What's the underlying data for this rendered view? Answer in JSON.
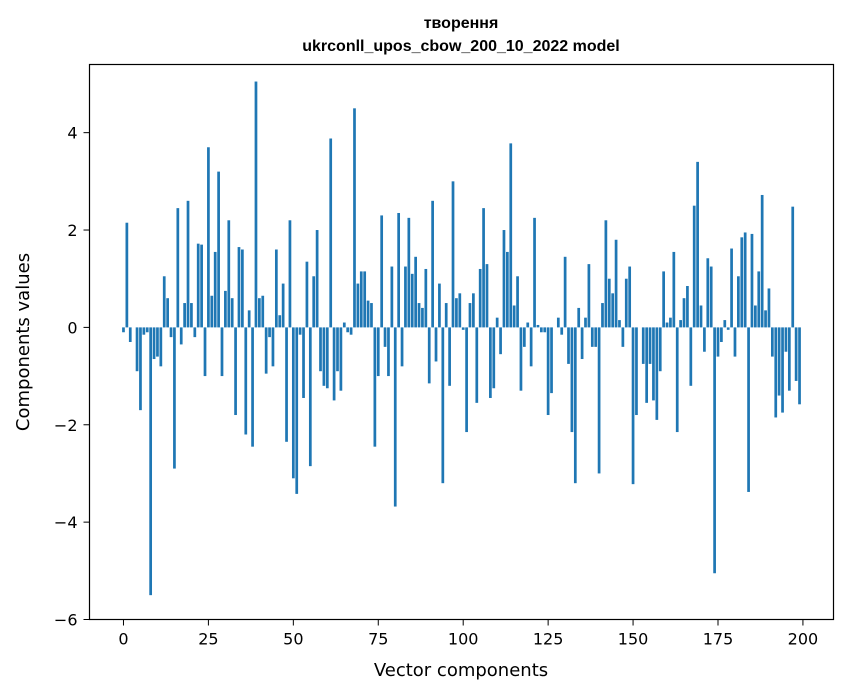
{
  "chart_data": {
    "type": "bar",
    "title": "творення",
    "subtitle": "ukrconll_upos_cbow_200_10_2022 model",
    "xlabel": "Vector components",
    "ylabel": "Components values",
    "xlim": [
      -10,
      209
    ],
    "ylim": [
      -6,
      5.4
    ],
    "x_ticks": [
      0,
      25,
      50,
      75,
      100,
      125,
      150,
      175,
      200
    ],
    "y_ticks": [
      -6,
      -4,
      -2,
      0,
      2,
      4
    ],
    "y_tick_labels": [
      "−6",
      "−4",
      "−2",
      "0",
      "2",
      "4"
    ],
    "grid": false,
    "bar_color": "#1f77b4",
    "x": [
      0,
      1,
      2,
      3,
      4,
      5,
      6,
      7,
      8,
      9,
      10,
      11,
      12,
      13,
      14,
      15,
      16,
      17,
      18,
      19,
      20,
      21,
      22,
      23,
      24,
      25,
      26,
      27,
      28,
      29,
      30,
      31,
      32,
      33,
      34,
      35,
      36,
      37,
      38,
      39,
      40,
      41,
      42,
      43,
      44,
      45,
      46,
      47,
      48,
      49,
      50,
      51,
      52,
      53,
      54,
      55,
      56,
      57,
      58,
      59,
      60,
      61,
      62,
      63,
      64,
      65,
      66,
      67,
      68,
      69,
      70,
      71,
      72,
      73,
      74,
      75,
      76,
      77,
      78,
      79,
      80,
      81,
      82,
      83,
      84,
      85,
      86,
      87,
      88,
      89,
      90,
      91,
      92,
      93,
      94,
      95,
      96,
      97,
      98,
      99,
      100,
      101,
      102,
      103,
      104,
      105,
      106,
      107,
      108,
      109,
      110,
      111,
      112,
      113,
      114,
      115,
      116,
      117,
      118,
      119,
      120,
      121,
      122,
      123,
      124,
      125,
      126,
      127,
      128,
      129,
      130,
      131,
      132,
      133,
      134,
      135,
      136,
      137,
      138,
      139,
      140,
      141,
      142,
      143,
      144,
      145,
      146,
      147,
      148,
      149,
      150,
      151,
      152,
      153,
      154,
      155,
      156,
      157,
      158,
      159,
      160,
      161,
      162,
      163,
      164,
      165,
      166,
      167,
      168,
      169,
      170,
      171,
      172,
      173,
      174,
      175,
      176,
      177,
      178,
      179,
      180,
      181,
      182,
      183,
      184,
      185,
      186,
      187,
      188,
      189,
      190,
      191,
      192,
      193,
      194,
      195,
      196,
      197,
      198,
      199
    ],
    "values": [
      -0.1,
      2.15,
      -0.3,
      0.0,
      -0.9,
      -1.7,
      -0.15,
      -0.1,
      -5.5,
      -0.65,
      -0.6,
      -0.8,
      1.05,
      0.6,
      -0.2,
      -2.9,
      2.45,
      -0.35,
      0.5,
      2.6,
      0.5,
      -0.2,
      1.72,
      1.7,
      -1.0,
      3.7,
      0.65,
      1.55,
      3.2,
      -1.0,
      0.75,
      2.2,
      0.6,
      -1.8,
      1.65,
      1.6,
      -2.2,
      0.35,
      -2.45,
      5.05,
      0.6,
      0.65,
      -0.95,
      -0.2,
      -0.8,
      1.6,
      0.25,
      0.9,
      -2.35,
      2.2,
      -3.1,
      -3.42,
      -0.15,
      -1.45,
      1.35,
      -2.85,
      1.05,
      2.0,
      -0.9,
      -1.2,
      -1.25,
      3.88,
      -1.5,
      -0.9,
      -1.3,
      0.1,
      -0.1,
      -0.15,
      4.5,
      0.9,
      1.15,
      1.15,
      0.55,
      0.5,
      -2.45,
      -1.0,
      2.3,
      -0.4,
      -1.0,
      1.25,
      -3.68,
      2.35,
      -0.8,
      1.25,
      2.25,
      1.1,
      1.45,
      0.5,
      0.4,
      1.2,
      -1.15,
      2.6,
      -0.7,
      0.9,
      -3.2,
      0.5,
      -1.2,
      3.0,
      0.6,
      0.7,
      -0.05,
      -2.15,
      0.5,
      0.7,
      -1.55,
      1.2,
      2.45,
      1.3,
      -1.45,
      -1.25,
      0.2,
      -0.55,
      2.0,
      1.55,
      3.78,
      0.45,
      1.05,
      -1.3,
      -0.4,
      0.1,
      -0.8,
      2.25,
      0.05,
      -0.1,
      -0.1,
      -1.8,
      -1.35,
      0.0,
      0.2,
      -0.15,
      1.45,
      -0.75,
      -2.15,
      -3.2,
      0.4,
      -0.65,
      0.2,
      1.3,
      -0.4,
      -0.4,
      -3.0,
      0.5,
      2.2,
      1.0,
      0.7,
      1.8,
      0.15,
      -0.4,
      1.0,
      1.25,
      -3.22,
      -1.8,
      0.0,
      -0.75,
      -1.55,
      -0.75,
      -1.5,
      -1.9,
      -0.9,
      1.15,
      0.1,
      0.2,
      1.55,
      -2.15,
      0.15,
      0.6,
      0.85,
      -1.2,
      2.5,
      3.4,
      0.45,
      -0.5,
      1.42,
      1.25,
      -5.05,
      -0.6,
      -0.3,
      0.15,
      -0.05,
      1.62,
      -0.6,
      1.05,
      1.85,
      1.95,
      -3.38,
      1.92,
      0.45,
      1.15,
      2.72,
      0.35,
      0.8,
      -0.6,
      -1.85,
      -1.4,
      -1.75,
      -0.5,
      -1.3,
      2.48,
      -1.1,
      -1.58
    ]
  }
}
